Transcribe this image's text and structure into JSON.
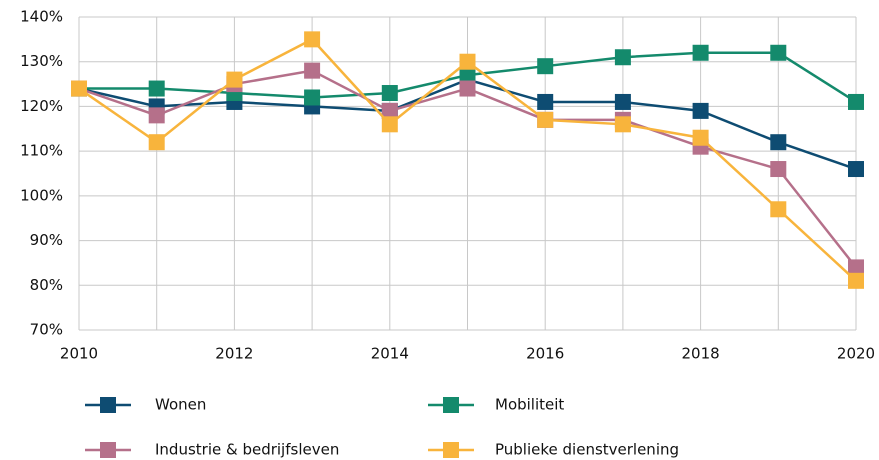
{
  "chart_data": {
    "type": "line",
    "x": [
      2010,
      2011,
      2012,
      2013,
      2014,
      2015,
      2016,
      2017,
      2018,
      2019,
      2020
    ],
    "series": [
      {
        "name": "Wonen",
        "color": "#0e4c72",
        "values": [
          124,
          120,
          121,
          120,
          119,
          126,
          121,
          121,
          119,
          112,
          106
        ]
      },
      {
        "name": "Mobiliteit",
        "color": "#148a6c",
        "values": [
          124,
          124,
          123,
          122,
          123,
          127,
          129,
          131,
          132,
          132,
          121
        ]
      },
      {
        "name": "Industrie & bedrijfsleven",
        "color": "#b5708a",
        "values": [
          124,
          118,
          125,
          128,
          119,
          124,
          117,
          117,
          111,
          106,
          84
        ]
      },
      {
        "name": "Publieke dienstverlening",
        "color": "#f8b43c",
        "values": [
          124,
          112,
          126,
          135,
          116,
          130,
          117,
          116,
          113,
          97,
          81
        ]
      }
    ],
    "xlim": [
      2010,
      2020
    ],
    "xticks": [
      2010,
      2012,
      2014,
      2016,
      2018,
      2020
    ],
    "ylim": [
      70,
      140
    ],
    "yticks": [
      {
        "value": 70,
        "label": "70%"
      },
      {
        "value": 80,
        "label": "80%"
      },
      {
        "value": 90,
        "label": "90%"
      },
      {
        "value": 100,
        "label": "100%"
      },
      {
        "value": 110,
        "label": "110%"
      },
      {
        "value": 120,
        "label": "120%"
      },
      {
        "value": 130,
        "label": "130%"
      },
      {
        "value": 140,
        "label": "140%"
      }
    ],
    "grid": true
  }
}
